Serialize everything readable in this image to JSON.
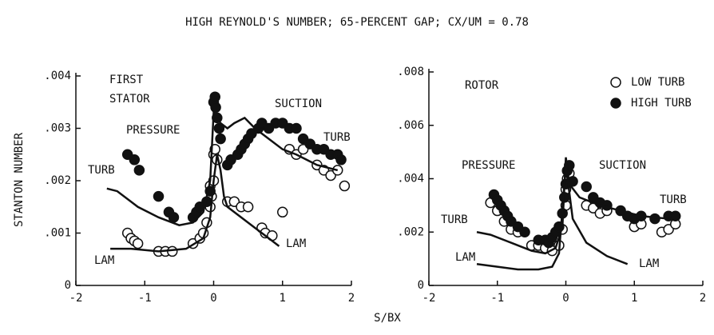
{
  "title": "HIGH REYNOLD'S NUMBER; 65-PERCENT GAP; CX/UM = 0.78",
  "xlabel": "S/BX",
  "ylabel": "STANTON NUMBER",
  "chart_data": [
    {
      "type": "scatter",
      "xlim": [
        -2,
        2
      ],
      "ylim": [
        0,
        0.004
      ],
      "xticks": [
        -2,
        -1,
        0,
        1,
        2
      ],
      "yticks": [
        0,
        {
          "value": 0.001,
          "label": ".001"
        },
        {
          "value": 0.002,
          "label": ".002"
        },
        {
          "value": 0.003,
          "label": ".003"
        },
        {
          "value": 0.004,
          "label": ".004"
        }
      ],
      "annotations": [
        "FIRST",
        "STATOR",
        "PRESSURE",
        "SUCTION",
        "TURB",
        "TURB",
        "LAM",
        "LAM"
      ],
      "series": [
        {
          "mode": "markers",
          "marker": "open",
          "color": "#111111",
          "x": [
            -1.25,
            -1.2,
            -1.15,
            -1.1,
            -0.8,
            -0.7,
            -0.6,
            -0.3,
            -0.2,
            -0.15,
            -0.1,
            -0.05,
            -0.05,
            -0.03,
            0,
            0,
            0.02,
            0.05,
            0.2,
            0.3,
            0.4,
            0.5,
            0.7,
            0.75,
            0.85,
            1.0,
            1.1,
            1.2,
            1.3,
            1.5,
            1.6,
            1.7,
            1.8,
            1.9
          ],
          "values": [
            0.001,
            0.0009,
            0.00085,
            0.0008,
            0.00065,
            0.00065,
            0.00065,
            0.0008,
            0.0009,
            0.001,
            0.0012,
            0.0015,
            0.0019,
            0.0017,
            0.002,
            0.0025,
            0.0026,
            0.0024,
            0.0016,
            0.0016,
            0.0015,
            0.0015,
            0.0011,
            0.001,
            0.00095,
            0.0014,
            0.0026,
            0.0025,
            0.0026,
            0.0023,
            0.0022,
            0.0021,
            0.0022,
            0.0019
          ]
        },
        {
          "mode": "markers",
          "marker": "filled",
          "color": "#111111",
          "x": [
            -1.25,
            -1.15,
            -1.08,
            -0.8,
            -0.65,
            -0.58,
            -0.3,
            -0.25,
            -0.2,
            -0.1,
            -0.05,
            0,
            0.02,
            0.03,
            0.05,
            0.08,
            0.1,
            0.2,
            0.25,
            0.35,
            0.4,
            0.45,
            0.5,
            0.55,
            0.65,
            0.7,
            0.8,
            0.9,
            1.0,
            1.1,
            1.2,
            1.3,
            1.4,
            1.5,
            1.6,
            1.7,
            1.8,
            1.85
          ],
          "values": [
            0.0025,
            0.0024,
            0.0022,
            0.0017,
            0.0014,
            0.0013,
            0.0013,
            0.0014,
            0.0015,
            0.0016,
            0.0018,
            0.0035,
            0.0036,
            0.0034,
            0.0032,
            0.003,
            0.0028,
            0.0023,
            0.0024,
            0.0025,
            0.0026,
            0.0027,
            0.0028,
            0.0029,
            0.003,
            0.0031,
            0.003,
            0.0031,
            0.0031,
            0.003,
            0.003,
            0.0028,
            0.0027,
            0.0026,
            0.0026,
            0.0025,
            0.0025,
            0.0024
          ]
        },
        {
          "mode": "line",
          "color": "#111111",
          "x": [
            -1.55,
            -1.4,
            -1.1,
            -0.8,
            -0.5,
            -0.3,
            -0.15,
            -0.05,
            0,
            0.1,
            0.2,
            0.3,
            0.45,
            0.6,
            0.8,
            1.0,
            1.2,
            1.5,
            1.8
          ],
          "values": [
            0.00185,
            0.0018,
            0.0015,
            0.0013,
            0.00115,
            0.0012,
            0.0014,
            0.002,
            0.0033,
            0.0031,
            0.003,
            0.0031,
            0.0032,
            0.003,
            0.0028,
            0.0026,
            0.0025,
            0.0023,
            0.0022
          ]
        },
        {
          "mode": "line",
          "color": "#111111",
          "x": [
            -1.5,
            -1.2,
            -0.8,
            -0.4,
            -0.15,
            -0.05,
            0,
            0.05,
            0.1,
            0.15,
            0.2,
            0.4,
            0.6,
            0.8,
            0.95
          ],
          "values": [
            0.0007,
            0.0007,
            0.00065,
            0.0007,
            0.0009,
            0.0013,
            0.002,
            0.0025,
            0.0022,
            0.0017,
            0.0015,
            0.0013,
            0.0011,
            0.0009,
            0.00075
          ]
        }
      ]
    },
    {
      "type": "scatter",
      "xlim": [
        -2,
        2
      ],
      "ylim": [
        0,
        0.008
      ],
      "xticks": [
        -2,
        -1,
        0,
        1,
        2
      ],
      "yticks": [
        0,
        {
          "value": 0.002,
          "label": ".002"
        },
        {
          "value": 0.004,
          "label": ".004"
        },
        {
          "value": 0.006,
          "label": ".006"
        },
        {
          "value": 0.008,
          "label": ".008"
        }
      ],
      "annotations": [
        "ROTOR",
        "PRESSURE",
        "SUCTION",
        "TURB",
        "TURB",
        "LAM",
        "LAM"
      ],
      "series": [
        {
          "name": "LOW TURB",
          "mode": "markers",
          "marker": "open",
          "color": "#111111",
          "x": [
            -1.1,
            -1,
            -0.9,
            -0.8,
            -0.7,
            -0.5,
            -0.4,
            -0.3,
            -0.2,
            -0.1,
            -0.05,
            0,
            0,
            0.02,
            0.05,
            0.3,
            0.4,
            0.5,
            0.6,
            1.0,
            1.1,
            1.4,
            1.5,
            1.6
          ],
          "values": [
            0.0031,
            0.0028,
            0.0024,
            0.0021,
            0.002,
            0.0015,
            0.0015,
            0.0014,
            0.0013,
            0.0015,
            0.0021,
            0.003,
            0.0036,
            0.004,
            0.0042,
            0.003,
            0.0029,
            0.0027,
            0.0028,
            0.0022,
            0.0023,
            0.002,
            0.0021,
            0.0023
          ]
        },
        {
          "name": "HIGH TURB",
          "mode": "markers",
          "marker": "filled",
          "color": "#111111",
          "x": [
            -1.05,
            -1,
            -0.95,
            -0.9,
            -0.85,
            -0.8,
            -0.7,
            -0.6,
            -0.4,
            -0.3,
            -0.25,
            -0.2,
            -0.15,
            -0.1,
            -0.05,
            -0.02,
            0,
            0.02,
            0.05,
            0.1,
            0.3,
            0.4,
            0.5,
            0.6,
            0.8,
            0.9,
            1.0,
            1.1,
            1.3,
            1.5,
            1.6
          ],
          "values": [
            0.0034,
            0.0032,
            0.003,
            0.0028,
            0.0026,
            0.0024,
            0.0022,
            0.002,
            0.0017,
            0.0017,
            0.0016,
            0.0018,
            0.002,
            0.0022,
            0.0027,
            0.0033,
            0.0038,
            0.0043,
            0.0045,
            0.0039,
            0.0037,
            0.0033,
            0.0031,
            0.003,
            0.0028,
            0.0026,
            0.0025,
            0.0026,
            0.0025,
            0.0026,
            0.0026
          ]
        },
        {
          "mode": "line",
          "color": "#111111",
          "x": [
            -1.3,
            -1.1,
            -0.8,
            -0.5,
            -0.3,
            -0.15,
            -0.05,
            0,
            0.05,
            0.2,
            0.5,
            0.8,
            1.1,
            1.5
          ],
          "values": [
            0.002,
            0.0019,
            0.0016,
            0.0013,
            0.0012,
            0.0014,
            0.0022,
            0.0048,
            0.0038,
            0.0033,
            0.003,
            0.0028,
            0.0026,
            0.0025
          ]
        },
        {
          "mode": "line",
          "color": "#111111",
          "x": [
            -1.3,
            -1,
            -0.7,
            -0.4,
            -0.2,
            -0.1,
            0,
            0.1,
            0.3,
            0.6,
            0.9
          ],
          "values": [
            0.0008,
            0.0007,
            0.0006,
            0.0006,
            0.0007,
            0.0012,
            0.0045,
            0.0025,
            0.0016,
            0.0011,
            0.0008
          ]
        }
      ]
    }
  ]
}
